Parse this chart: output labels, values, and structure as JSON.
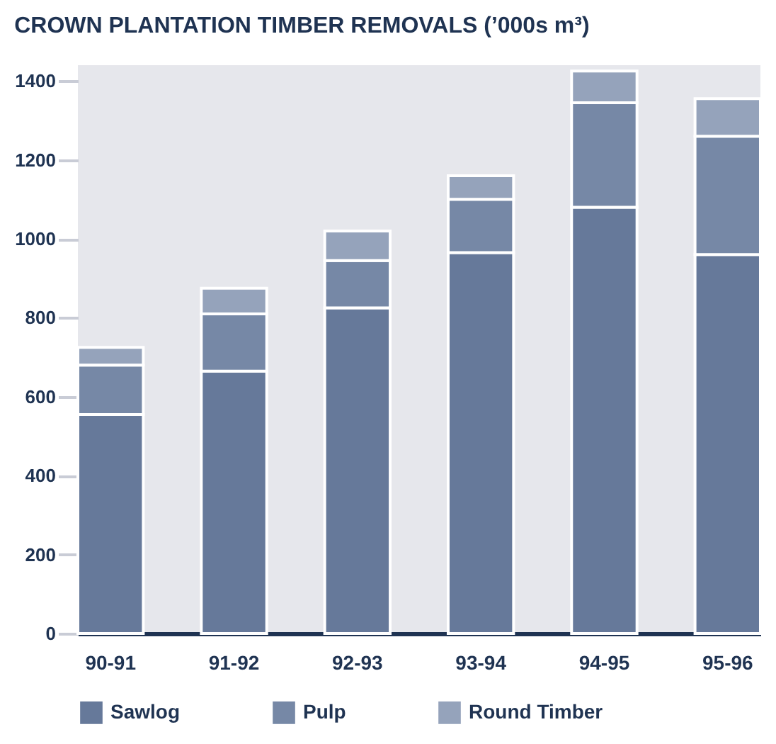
{
  "chart_data": {
    "type": "bar",
    "stacked": true,
    "title": "CROWN PLANTATION TIMBER REMOVALS (’000s m³)",
    "categories": [
      "90-91",
      "91-92",
      "92-93",
      "93-94",
      "94-95",
      "95-96"
    ],
    "series": [
      {
        "name": "Sawlog",
        "color": "#66799a",
        "values": [
          555,
          665,
          825,
          965,
          1080,
          960
        ]
      },
      {
        "name": "Pulp",
        "color": "#7688a6",
        "values": [
          125,
          145,
          120,
          135,
          265,
          300
        ]
      },
      {
        "name": "Round Timber",
        "color": "#95a3bb",
        "values": [
          45,
          65,
          75,
          60,
          80,
          95
        ]
      }
    ],
    "ylim": [
      0,
      1440
    ],
    "yticks": [
      0,
      200,
      400,
      600,
      800,
      1000,
      1200,
      1400
    ],
    "grid": false,
    "legend": "bottom"
  }
}
